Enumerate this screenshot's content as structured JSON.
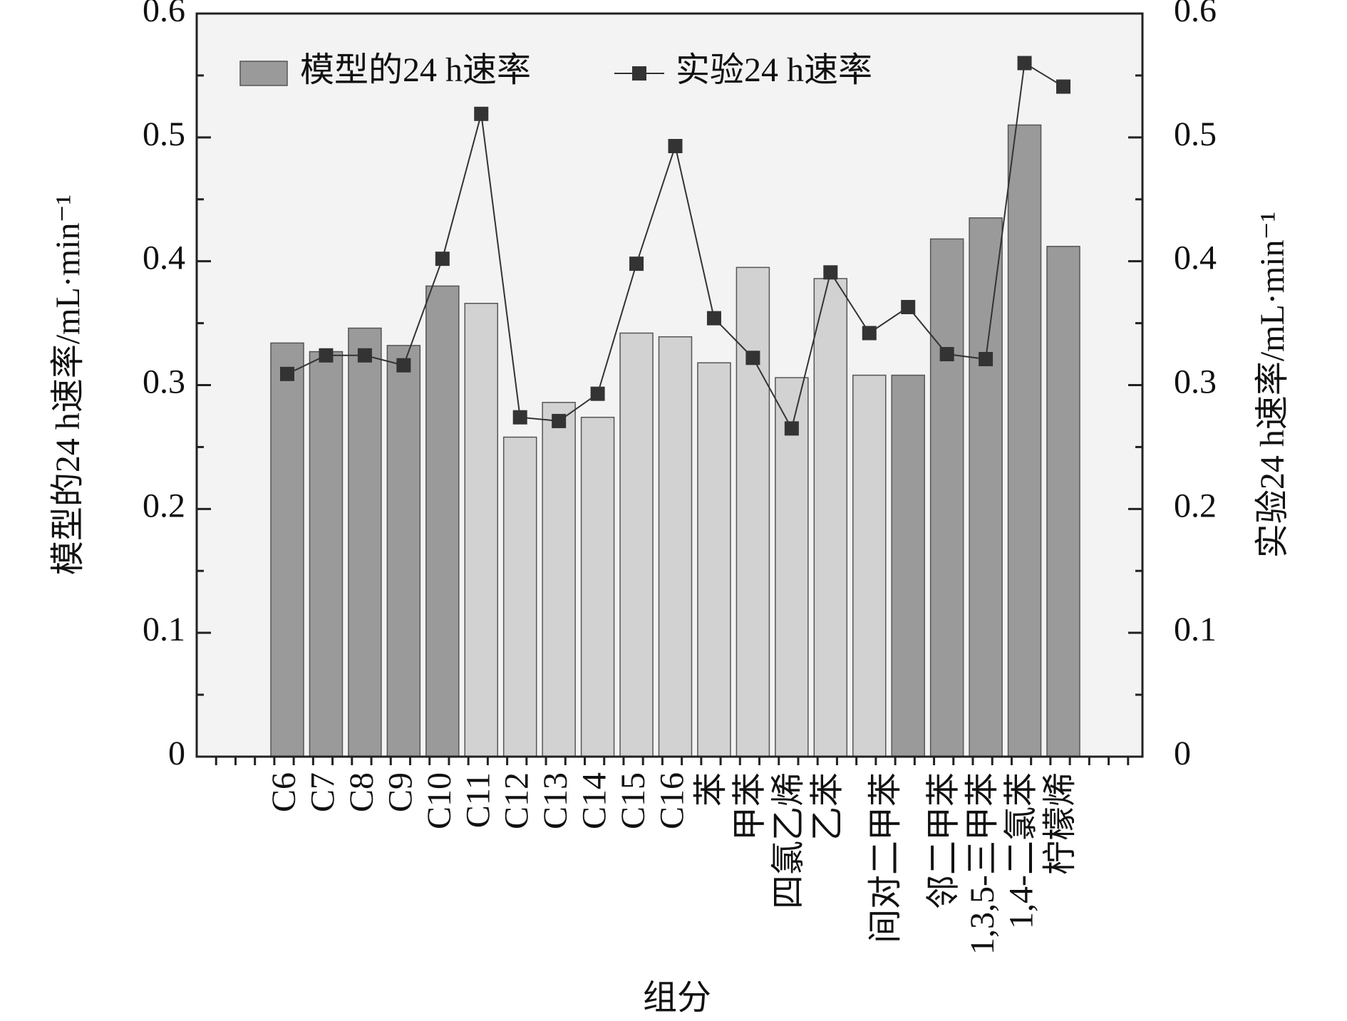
{
  "chart_data": {
    "type": "bar_line",
    "x_label": "组分",
    "y_label": "模型的24 h速率/mL·min⁻¹",
    "y2_label": "实验24 h速率/mL·min⁻¹",
    "categories": [
      "C6",
      "C7",
      "C8",
      "C9",
      "C10",
      "C11",
      "C12",
      "C13",
      "C14",
      "C15",
      "C16",
      "苯",
      "甲苯",
      "四氯乙烯",
      "乙苯",
      "间对二甲苯",
      null,
      "邻二甲苯",
      "1,3,5-三甲苯",
      "1,4-二氯苯",
      "柠檬烯"
    ],
    "series": [
      {
        "name": "模型的24 h速率",
        "type": "bar",
        "color": "#9a9a9a",
        "colors": [
          "#9a9a9a",
          "#9a9a9a",
          "#9a9a9a",
          "#9a9a9a",
          "#9a9a9a",
          "#d2d2d2",
          "#d2d2d2",
          "#d2d2d2",
          "#d2d2d2",
          "#d2d2d2",
          "#d2d2d2",
          "#d2d2d2",
          "#d2d2d2",
          "#d2d2d2",
          "#d2d2d2",
          "#d2d2d2",
          "#9a9a9a",
          "#9a9a9a",
          "#9a9a9a",
          "#9a9a9a",
          "#9a9a9a"
        ],
        "values": [
          0.334,
          0.327,
          0.346,
          0.332,
          0.38,
          0.366,
          0.258,
          0.286,
          0.274,
          0.342,
          0.339,
          0.318,
          0.395,
          0.306,
          0.386,
          0.308,
          0.308,
          0.418,
          0.435,
          0.51,
          0.412
        ]
      },
      {
        "name": "实验24 h速率",
        "type": "line",
        "axis": "y2",
        "color": "#333333",
        "values": [
          0.309,
          0.324,
          0.324,
          0.316,
          0.402,
          0.519,
          0.274,
          0.271,
          0.293,
          0.398,
          0.493,
          0.354,
          0.322,
          0.265,
          0.391,
          0.342,
          0.363,
          0.325,
          0.321,
          0.56,
          0.541
        ]
      }
    ],
    "ylim": [
      0,
      0.6
    ],
    "yticks": [
      0,
      0.1,
      0.2,
      0.3,
      0.4,
      0.5,
      0.6
    ],
    "y2lim": [
      0,
      0.6
    ],
    "y2ticks": [
      0,
      0.1,
      0.2,
      0.3,
      0.4,
      0.5,
      0.6
    ],
    "legend": "top-left"
  }
}
